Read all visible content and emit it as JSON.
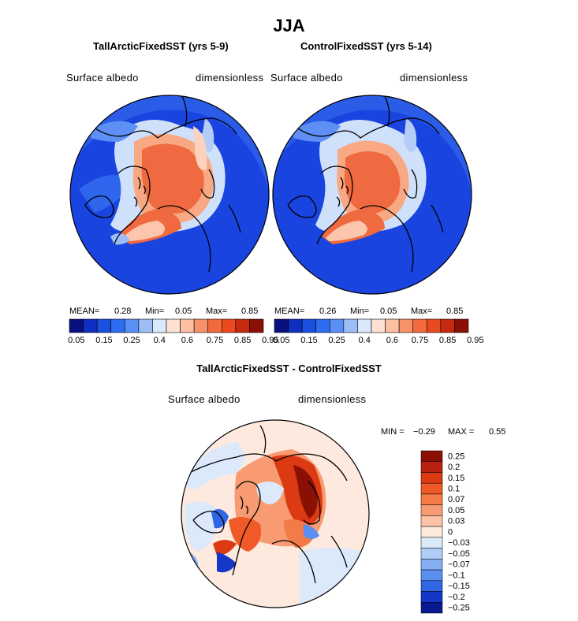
{
  "figure": {
    "season": "JJA",
    "panels": [
      {
        "title": "TallArcticFixedSST (yrs 5-9)",
        "field": "Surface albedo",
        "units": "dimensionless",
        "stats": {
          "mean_label": "MEAN=",
          "mean": "0.28",
          "min_label": "Min=",
          "min": "0.05",
          "max_label": "Max=",
          "max": "0.85"
        }
      },
      {
        "title": "ControlFixedSST (yrs 5-14)",
        "field": "Surface albedo",
        "units": "dimensionless",
        "stats": {
          "mean_label": "MEAN=",
          "mean": "0.26",
          "min_label": "Min=",
          "min": "0.05",
          "max_label": "Max=",
          "max": "0.85"
        }
      }
    ],
    "colorbar_top": {
      "tick_labels": [
        "0.05",
        "0.15",
        "0.25",
        "0.4",
        "0.6",
        "0.75",
        "0.85",
        "0.95"
      ],
      "colors": [
        "#0a1080",
        "#0f2fc0",
        "#1a4fe0",
        "#2e6cf2",
        "#5a8ff5",
        "#9dbdf7",
        "#d9e8fb",
        "#fde2d4",
        "#fbbfa2",
        "#f7916a",
        "#f26a3e",
        "#ea4a20",
        "#c82a10",
        "#8a0f05"
      ]
    },
    "difference": {
      "title": "TallArcticFixedSST - ControlFixedSST",
      "field": "Surface albedo",
      "units": "dimensionless",
      "min_label": "MIN =",
      "min": "−0.29",
      "max_label": "MAX =",
      "max": "0.55",
      "legend_labels": [
        "0.25",
        "0.2",
        "0.15",
        "0.1",
        "0.07",
        "0.05",
        "0.03",
        "0",
        "−0.03",
        "−0.05",
        "−0.07",
        "−0.1",
        "−0.15",
        "−0.2",
        "−0.25"
      ],
      "legend_colors": [
        "#8a0f05",
        "#b82010",
        "#dc3a12",
        "#f05a28",
        "#f47a48",
        "#f89a72",
        "#fcc3a6",
        "#fde9de",
        "#dbe9fb",
        "#b0cdf7",
        "#86aff3",
        "#5a8ef0",
        "#2f66e6",
        "#1437c8",
        "#081a90"
      ]
    }
  }
}
